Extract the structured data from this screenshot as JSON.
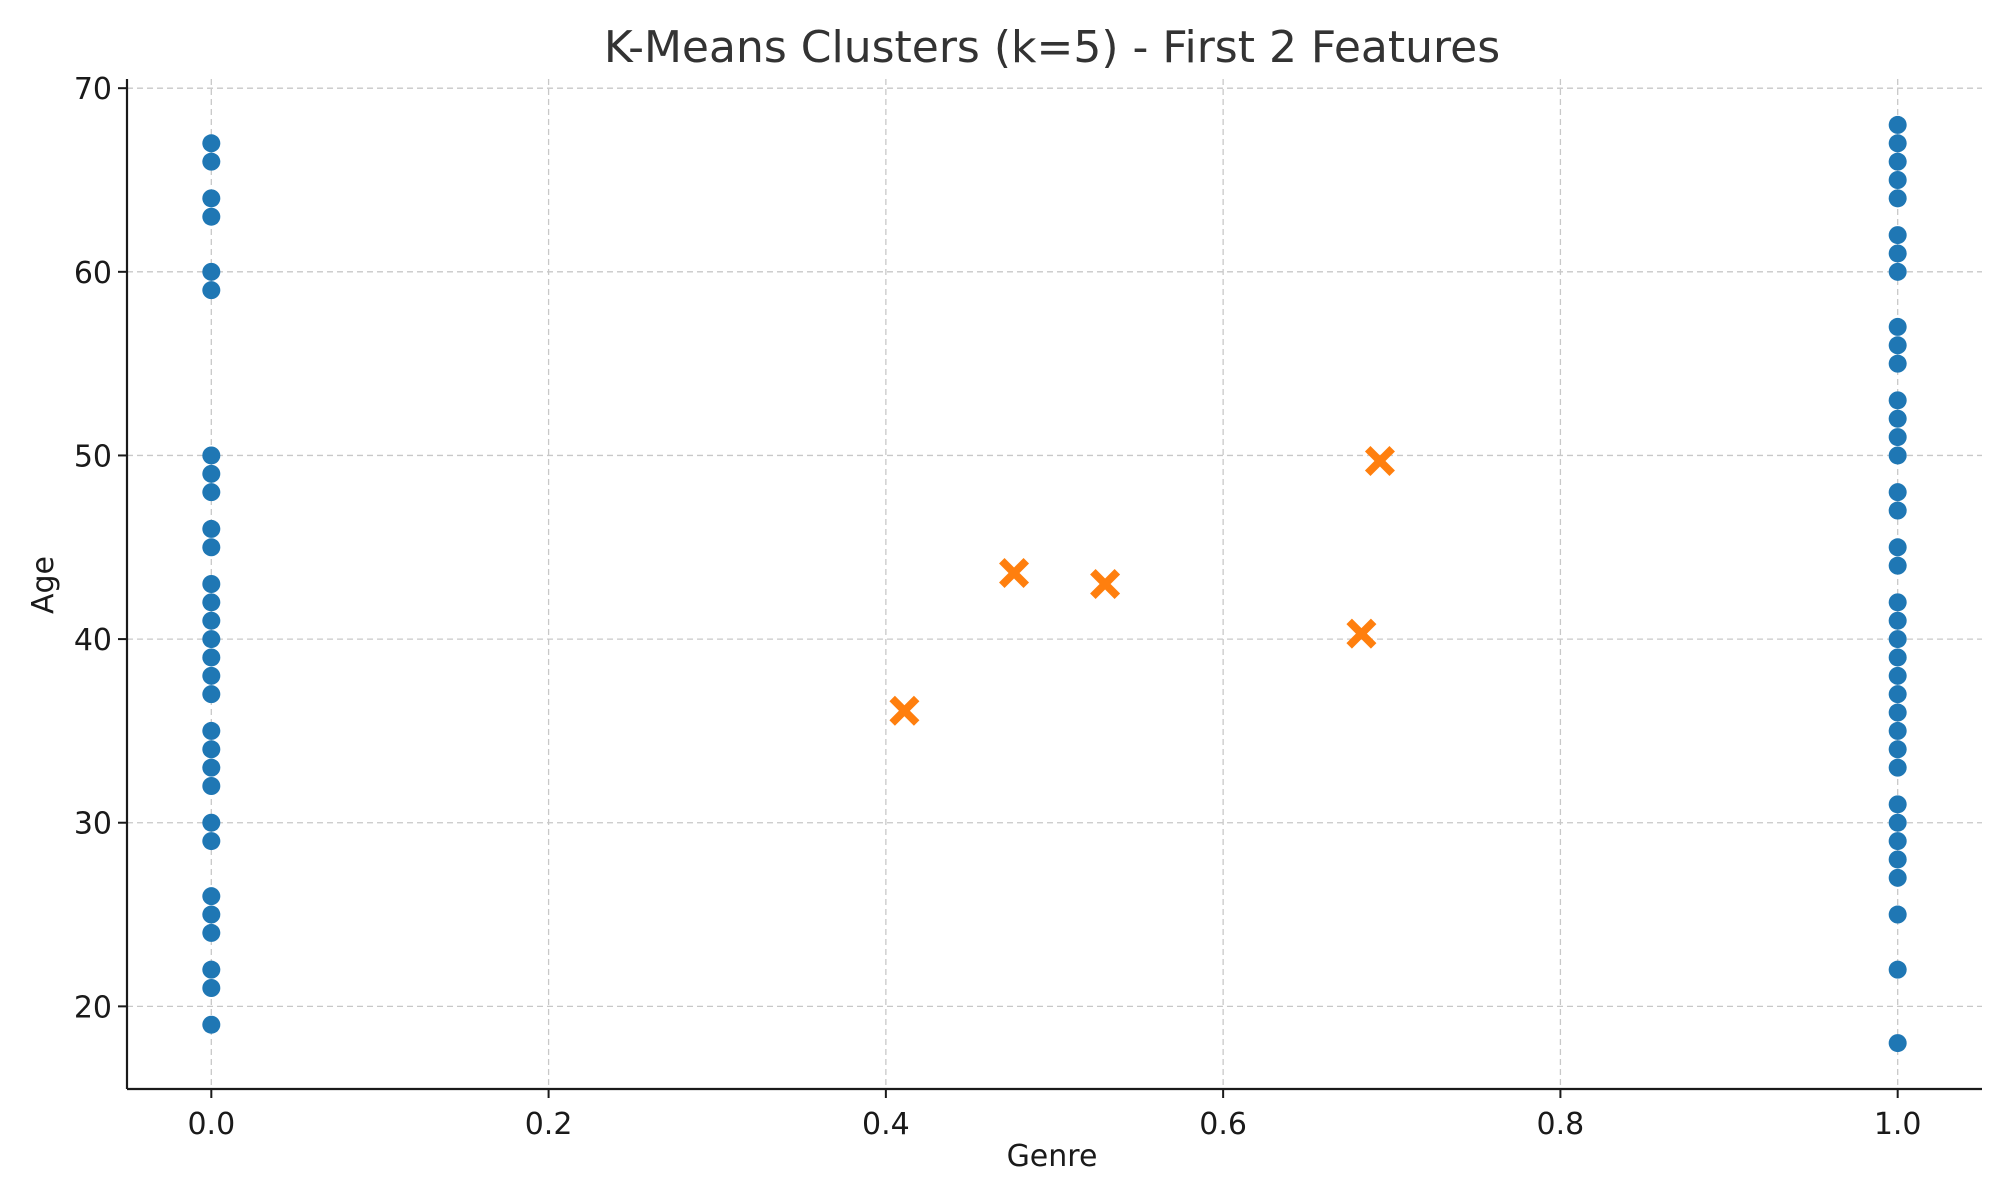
{
  "chart_data": {
    "type": "scatter",
    "title": "K-Means Clusters (k=5) - First 2 Features",
    "xlabel": "Genre",
    "ylabel": "Age",
    "xlim": [
      -0.05,
      1.05
    ],
    "ylim": [
      15.5,
      70.5
    ],
    "xticks": [
      0.0,
      0.2,
      0.4,
      0.6,
      0.8,
      1.0
    ],
    "xtick_labels": [
      "0.0",
      "0.2",
      "0.4",
      "0.6",
      "0.8",
      "1.0"
    ],
    "yticks": [
      20,
      30,
      40,
      50,
      60,
      70
    ],
    "ytick_labels": [
      "20",
      "30",
      "40",
      "50",
      "60",
      "70"
    ],
    "grid": true,
    "series": [
      {
        "marker": "circle",
        "color": "#1f77b4",
        "points": [
          [
            0,
            67
          ],
          [
            0,
            66
          ],
          [
            0,
            64
          ],
          [
            0,
            63
          ],
          [
            0,
            60
          ],
          [
            0,
            59
          ],
          [
            0,
            50
          ],
          [
            0,
            49
          ],
          [
            0,
            48
          ],
          [
            0,
            46
          ],
          [
            0,
            45
          ],
          [
            0,
            43
          ],
          [
            0,
            42
          ],
          [
            0,
            41
          ],
          [
            0,
            40
          ],
          [
            0,
            39
          ],
          [
            0,
            38
          ],
          [
            0,
            37
          ],
          [
            0,
            35
          ],
          [
            0,
            34
          ],
          [
            0,
            33
          ],
          [
            0,
            32
          ],
          [
            0,
            30
          ],
          [
            0,
            29
          ],
          [
            0,
            26
          ],
          [
            0,
            25
          ],
          [
            0,
            24
          ],
          [
            0,
            22
          ],
          [
            0,
            21
          ],
          [
            0,
            19
          ],
          [
            1,
            68
          ],
          [
            1,
            67
          ],
          [
            1,
            66
          ],
          [
            1,
            65
          ],
          [
            1,
            64
          ],
          [
            1,
            62
          ],
          [
            1,
            61
          ],
          [
            1,
            60
          ],
          [
            1,
            57
          ],
          [
            1,
            56
          ],
          [
            1,
            55
          ],
          [
            1,
            53
          ],
          [
            1,
            52
          ],
          [
            1,
            51
          ],
          [
            1,
            50
          ],
          [
            1,
            48
          ],
          [
            1,
            47
          ],
          [
            1,
            45
          ],
          [
            1,
            44
          ],
          [
            1,
            42
          ],
          [
            1,
            41
          ],
          [
            1,
            40
          ],
          [
            1,
            39
          ],
          [
            1,
            38
          ],
          [
            1,
            37
          ],
          [
            1,
            36
          ],
          [
            1,
            35
          ],
          [
            1,
            34
          ],
          [
            1,
            33
          ],
          [
            1,
            31
          ],
          [
            1,
            30
          ],
          [
            1,
            29
          ],
          [
            1,
            28
          ],
          [
            1,
            27
          ],
          [
            1,
            25
          ],
          [
            1,
            22
          ],
          [
            1,
            18
          ]
        ]
      },
      {
        "marker": "x-filled",
        "color": "#ff7f0e",
        "points": [
          [
            0.411,
            36.1
          ],
          [
            0.476,
            43.6
          ],
          [
            0.53,
            43.0
          ],
          [
            0.682,
            40.3
          ],
          [
            0.693,
            49.7
          ]
        ]
      }
    ]
  }
}
